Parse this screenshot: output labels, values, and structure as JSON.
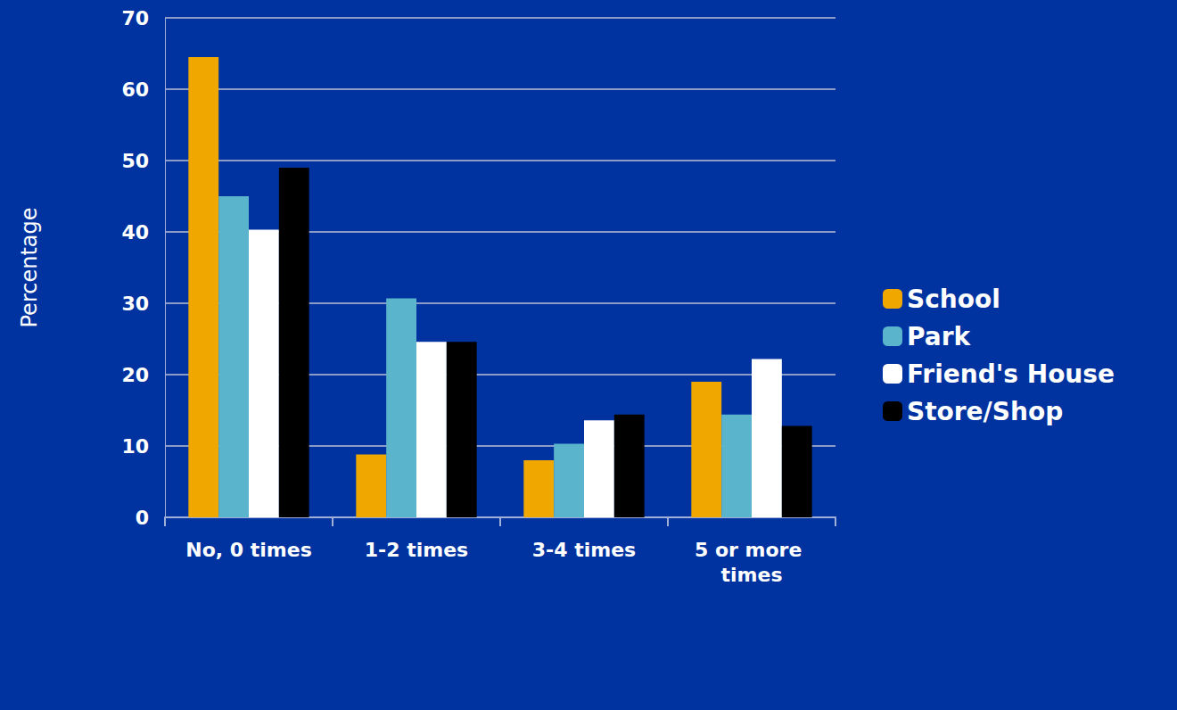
{
  "chart_data": {
    "type": "bar",
    "y_label": "Percentage",
    "categories": [
      "No, 0 times",
      "1-2 times",
      "3-4 times",
      "5 or more times"
    ],
    "series": [
      {
        "name": "School",
        "color": "#f0a800",
        "values": [
          64.5,
          8.8,
          8.0,
          19.0
        ]
      },
      {
        "name": "Park",
        "color": "#5ab4cc",
        "values": [
          45.0,
          30.7,
          10.3,
          14.4
        ]
      },
      {
        "name": "Friend's House",
        "color": "#ffffff",
        "values": [
          40.3,
          24.6,
          13.6,
          22.2
        ]
      },
      {
        "name": "Store/Shop",
        "color": "#000000",
        "values": [
          49.0,
          24.6,
          14.4,
          12.8
        ]
      }
    ],
    "ylim": [
      0,
      70
    ],
    "yticks": [
      0,
      10,
      20,
      30,
      40,
      50,
      60,
      70
    ],
    "grid": true,
    "legend": "right"
  }
}
